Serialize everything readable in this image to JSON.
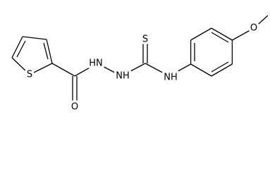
{
  "atoms": [
    {
      "label": "S"
    },
    {
      "label": "O"
    },
    {
      "label": "HN"
    },
    {
      "label": "NH"
    },
    {
      "label": "S"
    },
    {
      "label": "NH"
    },
    {
      "label": "O"
    }
  ]
}
